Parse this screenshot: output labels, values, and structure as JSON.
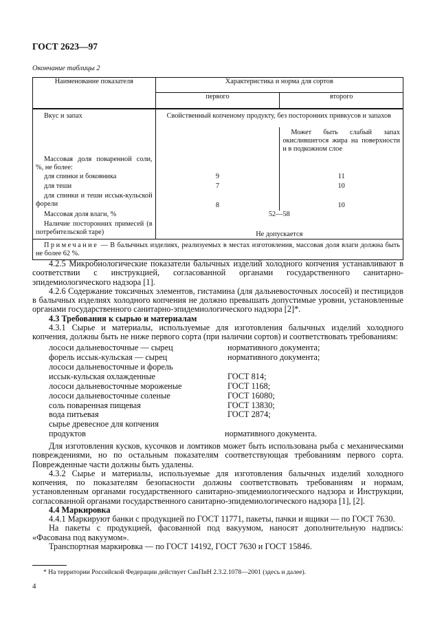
{
  "header": {
    "title": "ГОСТ 2623—97"
  },
  "table": {
    "caption": "Окончание таблицы 2",
    "col_name": "Наименование показателя",
    "col_group": "Характеристика и норма для сортов",
    "col_first": "первого",
    "col_second": "второго",
    "rows": [
      {
        "name": "Вкус и запах",
        "both": "Свойственный копченому продукту, без посторонних привкусов и запахов",
        "second_note": "Может быть слабый запах окислившегося жира на поверхности и в подкожном слое"
      },
      {
        "name": "Массовая доля поваренной соли, %, не более:"
      },
      {
        "name": "для спинки и боковника",
        "first": "9",
        "second": "11"
      },
      {
        "name": "для теши",
        "first": "7",
        "second": "10"
      },
      {
        "name": "для спинки и теши иссык-кульской форели",
        "first": "8",
        "second": "10"
      },
      {
        "name": "Массовая доля влаги, %",
        "both": "52—58"
      },
      {
        "name": "Наличие посторонних примесей (в потребительской таре)",
        "both": "Не допускается"
      }
    ],
    "note_label": "Примечание",
    "note_text": " — В балычных изделиях, реализуемых в местах изготовления, массовая доля влаги должна быть не более 62 %."
  },
  "body": {
    "p425": "4.2.5 Микробиологические показатели балычных изделий холодного копчения устанавливают в соответствии с инструкцией, согласованной органами государственного санитарно-эпидемиологического надзора [1].",
    "p426": "4.2.6 Содержание токсичных элементов, гистамина (для дальневосточных лососей) и пестицидов в балычных изделиях холодного копчения не должно превышать допустимые уровни, установленные органами государственного санитарно-эпидемиологического надзора [2]*.",
    "h43": "4.3 Требования к сырью и материалам",
    "p431": "4.3.1 Сырье и материалы, используемые для изготовления балычных изделий холодного копчения, должны быть не ниже первого сорта (при наличии сортов) и соответствовать требованиям:",
    "list": [
      {
        "item": "лососи дальневосточные — сырец",
        "ref": "нормативного документа;"
      },
      {
        "item": "форель иссык-кульская — сырец",
        "ref": "нормативного документа;"
      },
      {
        "item": "лососи дальневосточные и форель",
        "ref": ""
      },
      {
        "item": "иссык-кульская охлажденные",
        "ref": "ГОСТ 814;"
      },
      {
        "item": "лососи дальневосточные мороженые",
        "ref": "ГОСТ 1168;"
      },
      {
        "item": "лососи дальневосточные соленые",
        "ref": "ГОСТ 16080;"
      },
      {
        "item": "соль поваренная пищевая",
        "ref": "ГОСТ 13830;"
      },
      {
        "item": "вода питьевая",
        "ref": "ГОСТ 2874;"
      },
      {
        "item": "сырье древесное для копчения",
        "ref": ""
      },
      {
        "item": "продуктов",
        "ref": "нормативного документа."
      }
    ],
    "p_pieces": "Для изготовления кусков, кусочков и ломтиков может быть использована рыба с механическими повреждениями, но по остальным показателям соответствующая требованиям первого сорта. Поврежденные части должны быть удалены.",
    "p432": "4.3.2 Сырье и материалы, используемые для изготовления балычных изделий холодного копчения, по показателям безопасности должны соответствовать требованиям и нормам, установленным органами государственного санитарно-эпидемиологического надзора и Инструкции, согласованной органами государственного санитарно-эпидемиологического надзора [1], [2].",
    "h44": "4.4 Маркировка",
    "p441": "4.4.1 Маркируют банки с продукцией по ГОСТ 11771, пакеты, пачки и ящики — по ГОСТ 7630.",
    "p_vacuum": "На пакеты с продукцией, фасованной под вакуумом, наносят дополнительную надпись: «Фасована под вакуумом».",
    "p_transport": "Транспортная маркировка — по ГОСТ 14192, ГОСТ 7630 и ГОСТ 15846."
  },
  "footnote": "* На территории Российской Федерации действует СанПиН 2.3.2.1078—2001 (здесь и далее).",
  "page_number": "4"
}
